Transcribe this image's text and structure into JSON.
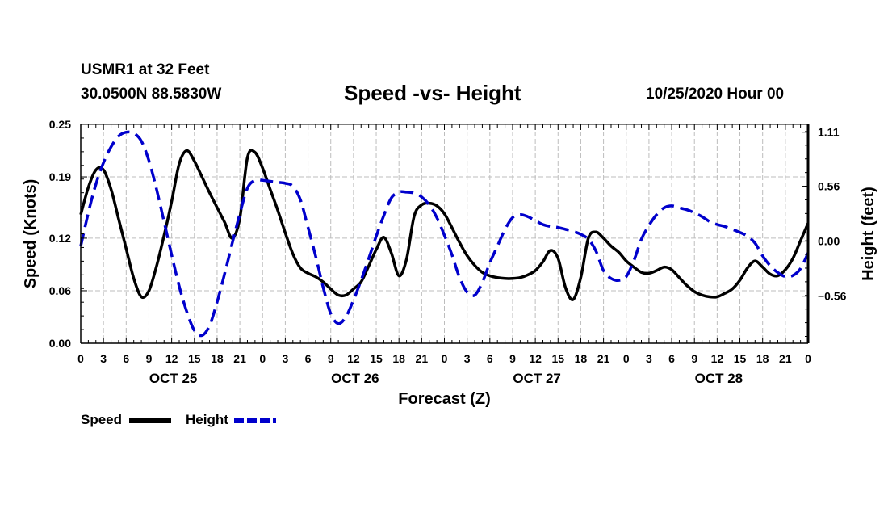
{
  "header": {
    "station": "USMR1 at 32 Feet",
    "coords": "30.0500N 88.5830W",
    "title": "Speed -vs- Height",
    "datetime": "10/25/2020 Hour 00"
  },
  "chart_data": {
    "type": "line",
    "title": "Speed -vs- Height",
    "xlabel": "Forecast (Z)",
    "ylabel": "Speed (Knots)",
    "y2label": "Height (feet)",
    "xlim": [
      0,
      96
    ],
    "ylim": [
      0,
      0.25
    ],
    "y2lim": [
      -1.04,
      1.19
    ],
    "grid": true,
    "x_ticks": [
      0,
      3,
      6,
      9,
      12,
      15,
      18,
      21,
      24,
      27,
      30,
      33,
      36,
      39,
      42,
      45,
      48,
      51,
      54,
      57,
      60,
      63,
      66,
      69,
      72,
      75,
      78,
      81,
      84,
      87,
      90,
      93,
      96
    ],
    "x_tick_labels": [
      "0",
      "3",
      "6",
      "9",
      "12",
      "15",
      "18",
      "21",
      "0",
      "3",
      "6",
      "9",
      "12",
      "15",
      "18",
      "21",
      "0",
      "3",
      "6",
      "9",
      "12",
      "15",
      "18",
      "21",
      "0",
      "3",
      "6",
      "9",
      "12",
      "15",
      "18",
      "21",
      "0"
    ],
    "day_labels": [
      {
        "hour": 12,
        "label": "OCT 25"
      },
      {
        "hour": 36,
        "label": "OCT 26"
      },
      {
        "hour": 60,
        "label": "OCT 27"
      },
      {
        "hour": 84,
        "label": "OCT 28"
      }
    ],
    "y_ticks": [
      0.0,
      0.06,
      0.12,
      0.19,
      0.25
    ],
    "y_tick_labels": [
      "0.00",
      "0.06",
      "0.12",
      "0.19",
      "0.25"
    ],
    "y2_ticks": [
      -0.56,
      0.0,
      0.56,
      1.11
    ],
    "y2_tick_labels": [
      "−0.56",
      "0.00",
      "0.56",
      "1.11"
    ],
    "legend": [
      {
        "name": "Speed",
        "color": "#000000",
        "dash": "solid"
      },
      {
        "name": "Height",
        "color": "#0000cc",
        "dash": "dashed"
      }
    ],
    "series": [
      {
        "name": "Speed",
        "axis": "left",
        "color": "#000000",
        "dash": "solid",
        "x": [
          0,
          1,
          2,
          3,
          4,
          5,
          6,
          7,
          8,
          9,
          10,
          11,
          12,
          13,
          14,
          15,
          16,
          17,
          18,
          19,
          20,
          21,
          22,
          23,
          24,
          25,
          26,
          27,
          28,
          29,
          30,
          31,
          32,
          33,
          34,
          35,
          36,
          37,
          38,
          39,
          40,
          41,
          42,
          43,
          44,
          45,
          46,
          47,
          48,
          49,
          50,
          51,
          52,
          53,
          54,
          55,
          56,
          57,
          58,
          59,
          60,
          61,
          62,
          63,
          64,
          65,
          66,
          67,
          68,
          69,
          70,
          71,
          72,
          73,
          74,
          75,
          76,
          77,
          78,
          79,
          80,
          81,
          82,
          83,
          84,
          85,
          86,
          87,
          88,
          89,
          90,
          91,
          92,
          93,
          94,
          95,
          96
        ],
        "values": [
          0.147,
          0.178,
          0.198,
          0.198,
          0.176,
          0.142,
          0.108,
          0.074,
          0.053,
          0.06,
          0.088,
          0.123,
          0.162,
          0.205,
          0.22,
          0.208,
          0.19,
          0.172,
          0.155,
          0.138,
          0.12,
          0.143,
          0.212,
          0.218,
          0.2,
          0.176,
          0.152,
          0.126,
          0.102,
          0.086,
          0.08,
          0.076,
          0.07,
          0.062,
          0.055,
          0.055,
          0.062,
          0.07,
          0.088,
          0.107,
          0.121,
          0.103,
          0.077,
          0.096,
          0.145,
          0.158,
          0.16,
          0.157,
          0.148,
          0.132,
          0.115,
          0.1,
          0.089,
          0.081,
          0.077,
          0.075,
          0.074,
          0.074,
          0.075,
          0.078,
          0.083,
          0.093,
          0.106,
          0.097,
          0.063,
          0.05,
          0.075,
          0.12,
          0.127,
          0.12,
          0.111,
          0.104,
          0.094,
          0.087,
          0.081,
          0.08,
          0.083,
          0.087,
          0.084,
          0.075,
          0.066,
          0.059,
          0.055,
          0.053,
          0.053,
          0.057,
          0.062,
          0.072,
          0.086,
          0.094,
          0.087,
          0.079,
          0.077,
          0.084,
          0.097,
          0.117,
          0.137
        ]
      },
      {
        "name": "Height",
        "axis": "right",
        "color": "#0000cc",
        "dash": "dashed",
        "x": [
          0,
          1,
          2,
          3,
          4,
          5,
          6,
          7,
          8,
          9,
          10,
          11,
          12,
          13,
          14,
          15,
          16,
          17,
          18,
          19,
          20,
          21,
          22,
          23,
          24,
          25,
          26,
          27,
          28,
          29,
          30,
          31,
          32,
          33,
          34,
          35,
          36,
          37,
          38,
          39,
          40,
          41,
          42,
          43,
          44,
          45,
          46,
          47,
          48,
          49,
          50,
          51,
          52,
          53,
          54,
          55,
          56,
          57,
          58,
          59,
          60,
          61,
          62,
          63,
          64,
          65,
          66,
          67,
          68,
          69,
          70,
          71,
          72,
          73,
          74,
          75,
          76,
          77,
          78,
          79,
          80,
          81,
          82,
          83,
          84,
          85,
          86,
          87,
          88,
          89,
          90,
          91,
          92,
          93,
          94,
          95,
          96
        ],
        "values": [
          -0.05,
          0.29,
          0.58,
          0.8,
          0.96,
          1.07,
          1.11,
          1.1,
          1.02,
          0.82,
          0.53,
          0.2,
          -0.14,
          -0.46,
          -0.72,
          -0.91,
          -0.96,
          -0.86,
          -0.62,
          -0.33,
          -0.02,
          0.28,
          0.54,
          0.62,
          0.62,
          0.61,
          0.6,
          0.59,
          0.56,
          0.42,
          0.14,
          -0.15,
          -0.47,
          -0.74,
          -0.84,
          -0.77,
          -0.6,
          -0.4,
          -0.18,
          0.05,
          0.26,
          0.44,
          0.5,
          0.5,
          0.49,
          0.45,
          0.37,
          0.24,
          0.06,
          -0.14,
          -0.37,
          -0.52,
          -0.55,
          -0.42,
          -0.22,
          -0.05,
          0.12,
          0.24,
          0.27,
          0.25,
          0.21,
          0.17,
          0.15,
          0.14,
          0.12,
          0.1,
          0.07,
          0.02,
          -0.1,
          -0.3,
          -0.38,
          -0.4,
          -0.36,
          -0.2,
          0.02,
          0.16,
          0.27,
          0.34,
          0.36,
          0.34,
          0.32,
          0.29,
          0.25,
          0.2,
          0.17,
          0.15,
          0.12,
          0.09,
          0.05,
          -0.02,
          -0.15,
          -0.25,
          -0.32,
          -0.36,
          -0.35,
          -0.28,
          -0.12
        ]
      }
    ]
  }
}
